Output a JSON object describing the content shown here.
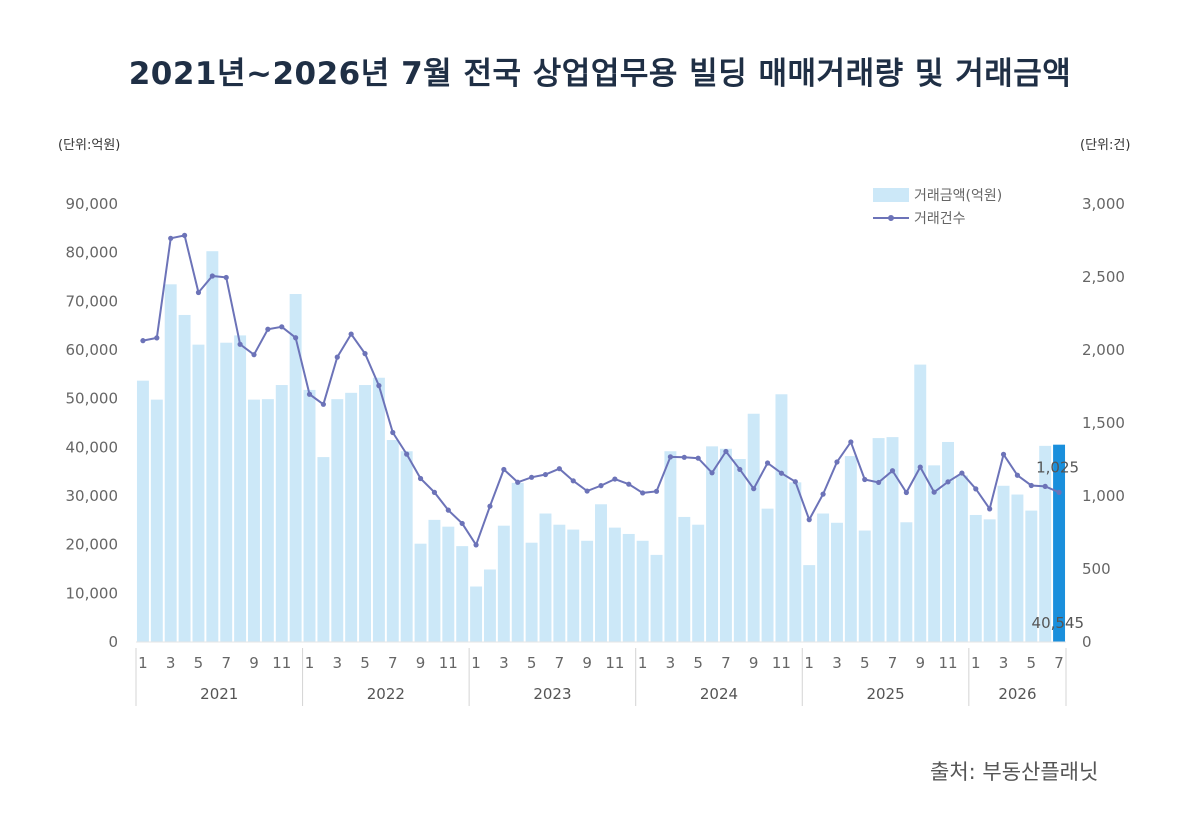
{
  "title": "2021년~2026년 7월 전국 상업업무용 빌딩 매매거래량 및 거래금액",
  "unit_left": "(단위:억원)",
  "unit_right": "(단위:건)",
  "source": "출처: 부동산플래닛",
  "chart_data": {
    "type": "bar",
    "title": "2021년~2026년 7월 전국 상업업무용 빌딩 매매거래량 및 거래금액",
    "y_left": {
      "unit": "(단위:억원)",
      "range": [
        0,
        90000
      ],
      "ticks": [
        "0",
        "10,000",
        "20,000",
        "30,000",
        "40,000",
        "50,000",
        "60,000",
        "70,000",
        "80,000",
        "90,000"
      ]
    },
    "y_right": {
      "unit": "(단위:건)",
      "range": [
        0,
        3000
      ],
      "ticks": [
        "0",
        "500",
        "1,000",
        "1,500",
        "2,000",
        "2,500",
        "3,000"
      ]
    },
    "years": [
      "2021",
      "2022",
      "2023",
      "2024",
      "2025",
      "2026"
    ],
    "month_tick_labels": [
      "1",
      "3",
      "5",
      "7",
      "9",
      "11"
    ],
    "last_year_tick_labels": [
      "1",
      "3",
      "5",
      "7"
    ],
    "legend_placement": "top-right",
    "grid": false,
    "series": [
      {
        "name": "거래금액(억원)",
        "type": "bar",
        "axis": "left",
        "color": "#cce8f8",
        "highlight_color": "#1a8fdc",
        "values": [
          53700,
          49800,
          73500,
          67200,
          61100,
          80300,
          61500,
          63000,
          49800,
          49900,
          52800,
          71500,
          51800,
          38000,
          49900,
          51200,
          52800,
          54300,
          41500,
          39200,
          20200,
          25100,
          23700,
          19700,
          11400,
          14900,
          23900,
          32700,
          20400,
          26400,
          24100,
          23100,
          20800,
          28300,
          23500,
          22200,
          20800,
          17900,
          39200,
          25700,
          24100,
          40200,
          39700,
          37600,
          46900,
          27400,
          50900,
          32800,
          15800,
          26400,
          24500,
          38200,
          22900,
          41900,
          42100,
          24600,
          57000,
          36300,
          41100,
          34200,
          26100,
          25200,
          32100,
          30300,
          27000,
          40300,
          40545
        ]
      },
      {
        "name": "거래건수",
        "type": "line",
        "axis": "right",
        "color": "#6c73b8",
        "values": [
          2064,
          2083,
          2765,
          2785,
          2394,
          2507,
          2497,
          2039,
          1968,
          2142,
          2159,
          2084,
          1697,
          1628,
          1951,
          2109,
          1975,
          1756,
          1435,
          1287,
          1120,
          1025,
          903,
          812,
          665,
          930,
          1182,
          1094,
          1128,
          1147,
          1187,
          1104,
          1034,
          1071,
          1116,
          1081,
          1021,
          1032,
          1268,
          1265,
          1259,
          1159,
          1305,
          1182,
          1050,
          1226,
          1156,
          1098,
          838,
          1013,
          1233,
          1370,
          1113,
          1093,
          1173,
          1024,
          1198,
          1026,
          1097,
          1157,
          1049,
          912,
          1285,
          1142,
          1072,
          1066,
          1025
        ]
      }
    ],
    "data_labels": {
      "last_line_value": "1,025",
      "last_bar_value": "40,545"
    }
  }
}
